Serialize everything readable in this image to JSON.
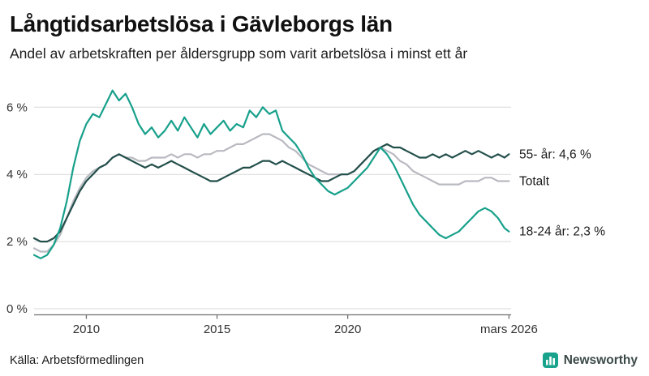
{
  "footer": {
    "source": "Källa: Arbetsförmedlingen",
    "brand": "Newsworthy",
    "brand_color": "#1aa38c"
  },
  "chart_data": {
    "type": "line",
    "title": "Långtidsarbetslösa i Gävleborgs län",
    "subtitle": "Andel av arbetskraften per åldersgrupp som varit arbetslösa i minst ett år",
    "xlabel": "",
    "ylabel": "",
    "grid": true,
    "legend_position": "right-end-labels",
    "ylim": [
      0,
      6.9
    ],
    "x_range": [
      2008,
      2026.25
    ],
    "yticks": [
      {
        "value": 0,
        "label": "0 %"
      },
      {
        "value": 2,
        "label": "2 %"
      },
      {
        "value": 4,
        "label": "4 %"
      },
      {
        "value": 6,
        "label": "6 %"
      }
    ],
    "xticks": [
      {
        "value": 2010,
        "label": "2010"
      },
      {
        "value": 2015,
        "label": "2015"
      },
      {
        "value": 2020,
        "label": "2020"
      },
      {
        "value": 2026.17,
        "label": "mars 2026"
      }
    ],
    "colors": {
      "grid": "#d9d9d9",
      "axis": "#6f6f6f",
      "tick_text": "#333333",
      "label_text": "#1a1a1a"
    },
    "x": [
      2008,
      2008.25,
      2008.5,
      2008.75,
      2009,
      2009.25,
      2009.5,
      2009.75,
      2010,
      2010.25,
      2010.5,
      2010.75,
      2011,
      2011.25,
      2011.5,
      2011.75,
      2012,
      2012.25,
      2012.5,
      2012.75,
      2013,
      2013.25,
      2013.5,
      2013.75,
      2014,
      2014.25,
      2014.5,
      2014.75,
      2015,
      2015.25,
      2015.5,
      2015.75,
      2016,
      2016.25,
      2016.5,
      2016.75,
      2017,
      2017.25,
      2017.5,
      2017.75,
      2018,
      2018.25,
      2018.5,
      2018.75,
      2019,
      2019.25,
      2019.5,
      2019.75,
      2020,
      2020.25,
      2020.5,
      2020.75,
      2021,
      2021.25,
      2021.5,
      2021.75,
      2022,
      2022.25,
      2022.5,
      2022.75,
      2023,
      2023.25,
      2023.5,
      2023.75,
      2024,
      2024.25,
      2024.5,
      2024.75,
      2025,
      2025.25,
      2025.5,
      2025.75,
      2026,
      2026.17
    ],
    "series": [
      {
        "name": "Totalt",
        "end_label": "Totalt",
        "color": "#b9bac1",
        "values": [
          1.8,
          1.7,
          1.7,
          1.9,
          2.2,
          2.7,
          3.2,
          3.6,
          3.9,
          4.1,
          4.2,
          4.3,
          4.5,
          4.6,
          4.5,
          4.5,
          4.4,
          4.4,
          4.5,
          4.5,
          4.5,
          4.6,
          4.5,
          4.6,
          4.6,
          4.5,
          4.6,
          4.6,
          4.7,
          4.7,
          4.8,
          4.9,
          4.9,
          5.0,
          5.1,
          5.2,
          5.2,
          5.1,
          5.0,
          4.8,
          4.7,
          4.5,
          4.3,
          4.2,
          4.1,
          4.0,
          4.0,
          4.0,
          4.0,
          4.1,
          4.3,
          4.5,
          4.7,
          4.8,
          4.7,
          4.6,
          4.4,
          4.3,
          4.1,
          4.0,
          3.9,
          3.8,
          3.7,
          3.7,
          3.7,
          3.7,
          3.8,
          3.8,
          3.8,
          3.9,
          3.9,
          3.8,
          3.8,
          3.8
        ]
      },
      {
        "name": "55- år",
        "end_label": "55- år: 4,6 %",
        "color": "#234f4b",
        "values": [
          2.1,
          2.0,
          2.0,
          2.1,
          2.3,
          2.7,
          3.1,
          3.5,
          3.8,
          4.0,
          4.2,
          4.3,
          4.5,
          4.6,
          4.5,
          4.4,
          4.3,
          4.2,
          4.3,
          4.2,
          4.3,
          4.4,
          4.3,
          4.2,
          4.1,
          4.0,
          3.9,
          3.8,
          3.8,
          3.9,
          4.0,
          4.1,
          4.2,
          4.2,
          4.3,
          4.4,
          4.4,
          4.3,
          4.4,
          4.3,
          4.2,
          4.1,
          4.0,
          3.9,
          3.8,
          3.8,
          3.9,
          4.0,
          4.0,
          4.1,
          4.3,
          4.5,
          4.7,
          4.8,
          4.9,
          4.8,
          4.8,
          4.7,
          4.6,
          4.5,
          4.5,
          4.6,
          4.5,
          4.6,
          4.5,
          4.6,
          4.7,
          4.6,
          4.7,
          4.6,
          4.5,
          4.6,
          4.5,
          4.6
        ]
      },
      {
        "name": "18-24 år",
        "end_label": "18-24 år: 2,3 %",
        "color": "#17a08b",
        "values": [
          1.6,
          1.5,
          1.6,
          1.9,
          2.4,
          3.2,
          4.2,
          5.0,
          5.5,
          5.8,
          5.7,
          6.1,
          6.5,
          6.2,
          6.4,
          6.0,
          5.5,
          5.2,
          5.4,
          5.1,
          5.3,
          5.6,
          5.3,
          5.7,
          5.4,
          5.1,
          5.5,
          5.2,
          5.4,
          5.6,
          5.3,
          5.5,
          5.4,
          5.9,
          5.7,
          6.0,
          5.8,
          5.9,
          5.3,
          5.1,
          4.9,
          4.6,
          4.2,
          3.9,
          3.7,
          3.5,
          3.4,
          3.5,
          3.6,
          3.8,
          4.0,
          4.2,
          4.5,
          4.8,
          4.6,
          4.3,
          3.9,
          3.5,
          3.1,
          2.8,
          2.6,
          2.4,
          2.2,
          2.1,
          2.2,
          2.3,
          2.5,
          2.7,
          2.9,
          3.0,
          2.9,
          2.7,
          2.4,
          2.3
        ]
      }
    ]
  }
}
